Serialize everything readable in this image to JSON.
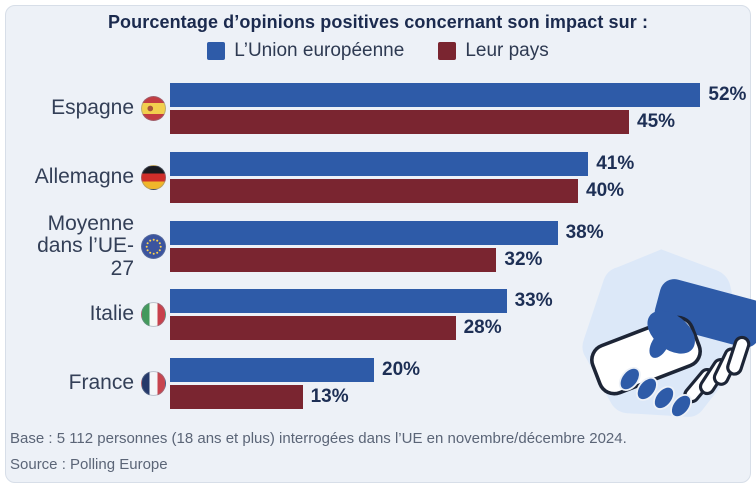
{
  "panel": {
    "background": "#edf1f7",
    "page_background": "#ffffff"
  },
  "chart_data": {
    "type": "bar",
    "orientation": "horizontal",
    "title": "Pourcentage d’opinions positives concernant son impact sur :",
    "unit": "%",
    "value_range": [
      0,
      52
    ],
    "legend_position": "top-center",
    "grid": false,
    "categories": [
      "Espagne",
      "Allemagne",
      "Moyenne dans l’UE-27",
      "Italie",
      "France"
    ],
    "flags": [
      "spain",
      "germany",
      "eu",
      "italy",
      "france"
    ],
    "series": [
      {
        "name": "L’Union européenne",
        "color": "#2e5ba8",
        "values": [
          52,
          41,
          38,
          33,
          20
        ]
      },
      {
        "name": "Leur pays",
        "color": "#7a2530",
        "values": [
          45,
          40,
          32,
          28,
          13
        ]
      }
    ]
  },
  "footer": {
    "base": "Base : 5 112 personnes (18 ans et plus) interrogées dans l’UE en novembre/décembre 2024.",
    "source": "Source : Polling Europe"
  },
  "illustration": {
    "name": "handshake",
    "blob_color": "#dce8f8",
    "hand_color": "#2e5ba8",
    "outline_color": "#1d2536"
  }
}
